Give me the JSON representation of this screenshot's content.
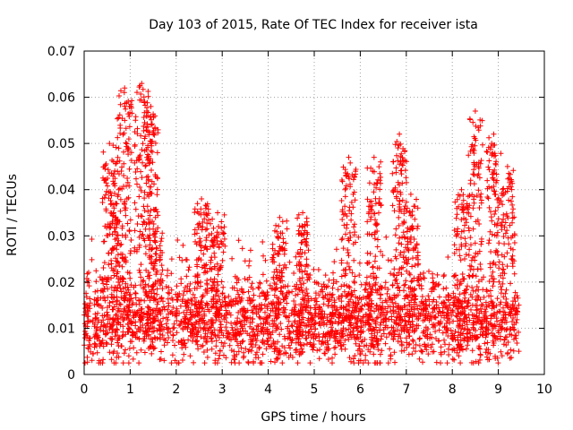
{
  "chart_data": {
    "type": "scatter",
    "title": "Day 103 of 2015, Rate Of TEC Index for receiver ista",
    "xlabel": "GPS time / hours",
    "ylabel": "ROTI / TECUs",
    "xlim": [
      0,
      10
    ],
    "ylim": [
      0,
      0.07
    ],
    "xticks": [
      "0",
      "1",
      "2",
      "3",
      "4",
      "5",
      "6",
      "7",
      "8",
      "9",
      "10"
    ],
    "yticks": [
      "0",
      "0.01",
      "0.02",
      "0.03",
      "0.04",
      "0.05",
      "0.06",
      "0.07"
    ],
    "grid": true,
    "marker": "+",
    "series": [
      {
        "name": "ROTI",
        "color": "#ff0000",
        "x_range": [
          0,
          9.45
        ],
        "baseline_mean": 0.011,
        "baseline_spread": 0.004,
        "peaks": [
          {
            "x": 0.55,
            "y": 0.05
          },
          {
            "x": 0.75,
            "y": 0.04
          },
          {
            "x": 0.88,
            "y": 0.062
          },
          {
            "x": 1.25,
            "y": 0.063
          },
          {
            "x": 1.45,
            "y": 0.058
          },
          {
            "x": 1.55,
            "y": 0.034
          },
          {
            "x": 2.55,
            "y": 0.038
          },
          {
            "x": 2.9,
            "y": 0.035
          },
          {
            "x": 4.25,
            "y": 0.034
          },
          {
            "x": 4.75,
            "y": 0.035
          },
          {
            "x": 5.75,
            "y": 0.047
          },
          {
            "x": 6.3,
            "y": 0.047
          },
          {
            "x": 6.85,
            "y": 0.052
          },
          {
            "x": 7.1,
            "y": 0.039
          },
          {
            "x": 8.2,
            "y": 0.04
          },
          {
            "x": 8.5,
            "y": 0.057
          },
          {
            "x": 8.9,
            "y": 0.052
          },
          {
            "x": 9.2,
            "y": 0.045
          }
        ]
      }
    ]
  }
}
